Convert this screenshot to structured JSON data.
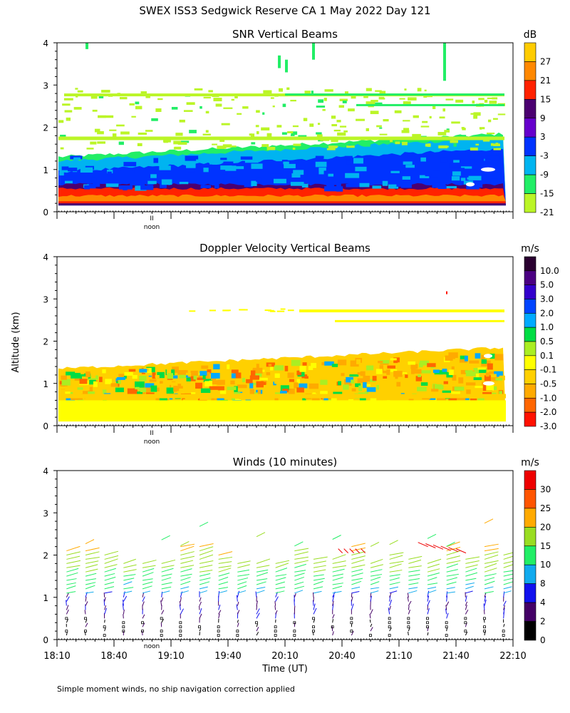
{
  "figure": {
    "title": "SWEX ISS3 Sedgwick Reserve CA   1 May 2022 Day 121",
    "ylabel": "Altitude (km)",
    "xlabel": "Time (UT)",
    "footnote": "Simple moment winds, no ship navigation correction applied",
    "noon_label": "noon",
    "noon_tick": "II"
  },
  "chart_data": [
    {
      "type": "heatmap",
      "title": "SNR Vertical Beams",
      "ylim": [
        0,
        4
      ],
      "yticks": [
        "0",
        "1",
        "2",
        "3",
        "4"
      ],
      "xlim_minutes_since_1810": [
        0,
        240
      ],
      "colorbar": {
        "unit": "dB",
        "labels": [
          "27",
          "21",
          "15",
          "9",
          "3",
          "-3",
          "-9",
          "-15",
          "-21"
        ],
        "colors": [
          "#ffcc00",
          "#ff8800",
          "#ff2200",
          "#4b0070",
          "#6600cc",
          "#0033ff",
          "#00b4f0",
          "#22ee66",
          "#bbf527"
        ]
      },
      "bands": [
        {
          "alt_from": 0.15,
          "alt_to": 0.3,
          "label": "15"
        },
        {
          "alt_from": 0.3,
          "alt_to": 0.45,
          "label": "21"
        },
        {
          "alt_from": 0.45,
          "alt_to": 0.6,
          "label": "9"
        },
        {
          "alt_from": 0.6,
          "alt_to": 1.0,
          "label": "-3"
        },
        {
          "alt_from": 1.0,
          "alt_to": 1.3,
          "label": "-9"
        },
        {
          "alt_from": 1.3,
          "alt_to": 1.5,
          "label": "-15"
        },
        {
          "alt_from": 2.75,
          "alt_to": 2.8,
          "label": "-21"
        }
      ]
    },
    {
      "type": "heatmap",
      "title": "Doppler Velocity Vertical Beams",
      "ylim": [
        0,
        4
      ],
      "yticks": [
        "0",
        "1",
        "2",
        "3",
        "4"
      ],
      "xlim_minutes_since_1810": [
        0,
        240
      ],
      "colorbar": {
        "unit": "m/s",
        "labels": [
          "10.0",
          "5.0",
          "3.0",
          "2.0",
          "1.0",
          "0.5",
          "0.1",
          "-0.1",
          "-0.5",
          "-1.0",
          "-2.0",
          "-3.0"
        ],
        "colors": [
          "#2a0030",
          "#4b0082",
          "#3300cc",
          "#0044ff",
          "#00aaff",
          "#00dd44",
          "#aaee22",
          "#ffff00",
          "#ffd000",
          "#ffaa00",
          "#ff6600",
          "#ff1100"
        ]
      },
      "bands": [
        {
          "alt_from": 0.1,
          "alt_to": 0.6,
          "label": "-0.1"
        },
        {
          "alt_from": 0.6,
          "alt_to": 1.4,
          "label": "-0.5"
        },
        {
          "alt_from": 2.45,
          "alt_to": 2.5,
          "label": "-0.1"
        },
        {
          "alt_from": 2.7,
          "alt_to": 2.75,
          "label": "-0.1"
        }
      ]
    },
    {
      "type": "scatter",
      "title": "Winds (10 minutes)",
      "ylim": [
        0,
        4
      ],
      "yticks": [
        "0",
        "1",
        "2",
        "3",
        "4"
      ],
      "xticks": [
        "18:10",
        "18:40",
        "19:10",
        "19:40",
        "20:10",
        "20:40",
        "21:10",
        "21:40",
        "22:10"
      ],
      "xlim_minutes_since_1810": [
        0,
        240
      ],
      "colorbar": {
        "unit": "m/s",
        "labels": [
          "30",
          "25",
          "20",
          "15",
          "10",
          "8",
          "4",
          "2",
          "0"
        ],
        "colors": [
          "#ee0000",
          "#ff5500",
          "#ffaa00",
          "#99dd22",
          "#22ee66",
          "#11aaee",
          "#1111ee",
          "#440066",
          "#000000"
        ]
      },
      "profile_times_minutes": [
        5,
        15,
        25,
        35,
        45,
        55,
        65,
        75,
        85,
        95,
        105,
        115,
        125,
        135,
        145,
        155,
        165,
        175,
        185,
        195,
        205,
        215,
        225,
        235
      ]
    }
  ]
}
